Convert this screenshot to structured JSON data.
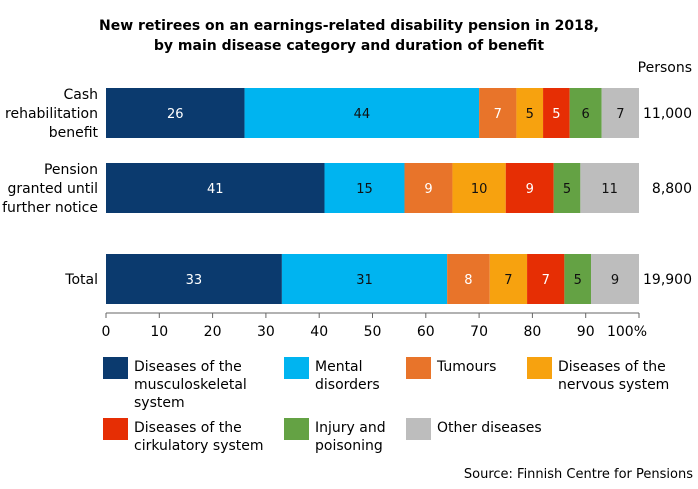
{
  "chart_data": {
    "type": "bar",
    "orientation": "horizontal",
    "stacked": true,
    "title": "New retirees on an earnings-related disability pension in 2018,",
    "subtitle": "by main disease category and duration of benefit",
    "categories": [
      {
        "lines": [
          "Cash",
          "rehabilitation",
          "benefit"
        ],
        "persons": "11,000"
      },
      {
        "lines": [
          "Pension",
          "granted until",
          "further notice"
        ],
        "persons": "8,800"
      },
      {
        "lines": [
          "Total"
        ],
        "persons": "19,900"
      }
    ],
    "persons_header": "Persons",
    "series": [
      {
        "name": [
          "Diseases of the",
          "musculoskeletal",
          "system"
        ],
        "color": "#0b3a6e",
        "values": [
          26,
          41,
          33
        ]
      },
      {
        "name": [
          "Mental",
          "disorders"
        ],
        "color": "#00b4f0",
        "values": [
          44,
          15,
          31
        ]
      },
      {
        "name": [
          "Tumours"
        ],
        "color": "#e8742a",
        "values": [
          7,
          9,
          8
        ]
      },
      {
        "name": [
          "Diseases of the",
          "nervous system"
        ],
        "color": "#f7a20f",
        "values": [
          5,
          10,
          7
        ]
      },
      {
        "name": [
          "Diseases of the",
          "cirkulatory system"
        ],
        "color": "#e62e04",
        "values": [
          5,
          9,
          7
        ]
      },
      {
        "name": [
          "Injury and",
          "poisoning"
        ],
        "color": "#64a244",
        "values": [
          6,
          5,
          5
        ]
      },
      {
        "name": [
          "Other diseases"
        ],
        "color": "#bdbdbd",
        "values": [
          7,
          11,
          9
        ]
      }
    ],
    "xlim": [
      0,
      100
    ],
    "xticks": [
      "0",
      "10",
      "20",
      "30",
      "40",
      "50",
      "60",
      "70",
      "80",
      "90",
      "100%"
    ],
    "grid": false,
    "legend_position": "bottom"
  },
  "source": "Source: Finnish Centre for Pensions"
}
